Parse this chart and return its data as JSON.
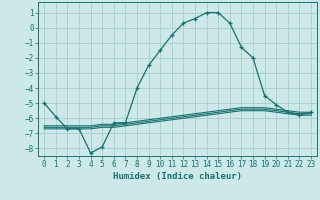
{
  "xlabel": "Humidex (Indice chaleur)",
  "background_color": "#cce8e8",
  "grid_color": "#aacccc",
  "line_color": "#1a7070",
  "xlim": [
    -0.5,
    23.5
  ],
  "ylim": [
    -8.5,
    1.7
  ],
  "xticks": [
    0,
    1,
    2,
    3,
    4,
    5,
    6,
    7,
    8,
    9,
    10,
    11,
    12,
    13,
    14,
    15,
    16,
    17,
    18,
    19,
    20,
    21,
    22,
    23
  ],
  "yticks": [
    1,
    0,
    -1,
    -2,
    -3,
    -4,
    -5,
    -6,
    -7,
    -8
  ],
  "main_x": [
    0,
    1,
    2,
    3,
    4,
    5,
    6,
    7,
    8,
    9,
    10,
    11,
    12,
    13,
    14,
    15,
    16,
    17,
    18,
    19,
    20,
    21,
    22,
    23
  ],
  "main_y": [
    -5.0,
    -5.9,
    -6.7,
    -6.7,
    -8.3,
    -7.9,
    -6.3,
    -6.3,
    -4.0,
    -2.5,
    -1.5,
    -0.5,
    0.3,
    0.6,
    1.0,
    1.0,
    0.3,
    -1.3,
    -2.0,
    -4.5,
    -5.1,
    -5.6,
    -5.8,
    -5.6
  ],
  "line2_y": [
    -6.5,
    -6.5,
    -6.5,
    -6.5,
    -6.5,
    -6.4,
    -6.4,
    -6.3,
    -6.2,
    -6.1,
    -6.0,
    -5.9,
    -5.8,
    -5.7,
    -5.6,
    -5.5,
    -5.4,
    -5.3,
    -5.3,
    -5.3,
    -5.4,
    -5.5,
    -5.6,
    -5.6
  ],
  "line3_y": [
    -6.6,
    -6.6,
    -6.6,
    -6.6,
    -6.6,
    -6.5,
    -6.5,
    -6.4,
    -6.3,
    -6.2,
    -6.1,
    -6.0,
    -5.9,
    -5.8,
    -5.7,
    -5.6,
    -5.5,
    -5.4,
    -5.4,
    -5.4,
    -5.5,
    -5.6,
    -5.7,
    -5.7
  ],
  "line4_y": [
    -6.7,
    -6.7,
    -6.7,
    -6.7,
    -6.7,
    -6.6,
    -6.6,
    -6.5,
    -6.4,
    -6.3,
    -6.2,
    -6.1,
    -6.0,
    -5.9,
    -5.8,
    -5.7,
    -5.6,
    -5.5,
    -5.5,
    -5.5,
    -5.6,
    -5.7,
    -5.8,
    -5.8
  ]
}
